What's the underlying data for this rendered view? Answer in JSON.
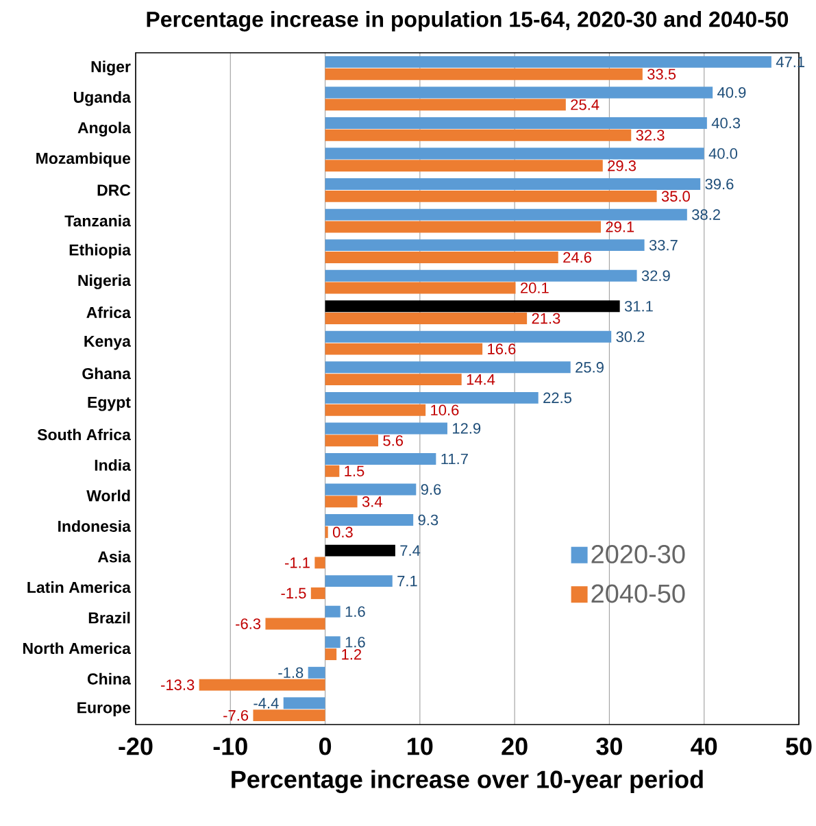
{
  "chart_data": {
    "type": "bar",
    "orientation": "horizontal",
    "title": "Percentage increase in population 15-64, 2020-30 and 2040-50",
    "xlabel": "Percentage increase over 10-year period",
    "categories": [
      "Niger",
      "Uganda",
      "Angola",
      "Mozambique",
      "DRC",
      "Tanzania",
      "Ethiopia",
      "Nigeria",
      "Africa",
      "Kenya",
      "Ghana",
      "Egypt",
      "South Africa",
      "India",
      "World",
      "Indonesia",
      "Asia",
      "Latin America",
      "Brazil",
      "North America",
      "China",
      "Europe"
    ],
    "series": [
      {
        "name": "2020-30",
        "color": "#5b9bd5",
        "colors": [
          "#5b9bd5",
          "#5b9bd5",
          "#5b9bd5",
          "#5b9bd5",
          "#5b9bd5",
          "#5b9bd5",
          "#5b9bd5",
          "#5b9bd5",
          "#000000",
          "#5b9bd5",
          "#5b9bd5",
          "#5b9bd5",
          "#5b9bd5",
          "#5b9bd5",
          "#5b9bd5",
          "#5b9bd5",
          "#000000",
          "#5b9bd5",
          "#5b9bd5",
          "#5b9bd5",
          "#5b9bd5",
          "#5b9bd5"
        ],
        "values": [
          47.1,
          40.9,
          40.3,
          40.0,
          39.6,
          38.2,
          33.7,
          32.9,
          31.1,
          30.2,
          25.9,
          22.5,
          12.9,
          11.7,
          9.6,
          9.3,
          7.4,
          7.1,
          1.6,
          1.6,
          -1.8,
          -4.4
        ],
        "value_labels": [
          "47.1",
          "40.9",
          "40.3",
          "40.0",
          "39.6",
          "38.2",
          "33.7",
          "32.9",
          "31.1",
          "30.2",
          "25.9",
          "22.5",
          "12.9",
          "11.7",
          "9.6",
          "9.3",
          "7.4",
          "7.1",
          "1.6",
          "1.6",
          "-1.8",
          "-4.4"
        ]
      },
      {
        "name": "2040-50",
        "color": "#ed7d31",
        "values": [
          33.5,
          25.4,
          32.3,
          29.3,
          35.0,
          29.1,
          24.6,
          20.1,
          21.3,
          16.6,
          14.4,
          10.6,
          5.6,
          1.5,
          3.4,
          0.3,
          -1.1,
          -1.5,
          -6.3,
          1.2,
          -13.3,
          -7.6
        ],
        "value_labels": [
          "33.5",
          "25.4",
          "32.3",
          "29.3",
          "35.0",
          "29.1",
          "24.6",
          "20.1",
          "21.3",
          "16.6",
          "14.4",
          "10.6",
          "5.6",
          "1.5",
          "3.4",
          "0.3",
          "-1.1",
          "-1.5",
          "-6.3",
          "1.2",
          "-13.3",
          "-7.6"
        ]
      }
    ],
    "xlim": [
      -20,
      50
    ],
    "xticks": [
      -20,
      -10,
      0,
      10,
      20,
      30,
      40,
      50
    ],
    "grid": "x",
    "legend": "bottom right"
  }
}
